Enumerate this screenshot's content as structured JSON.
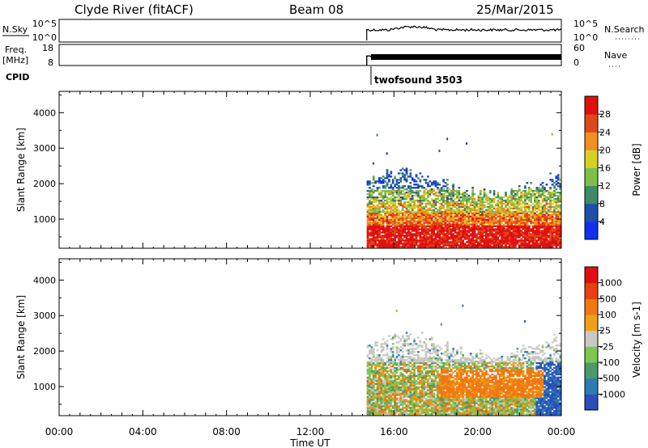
{
  "header": {
    "station": "Clyde River (fitACF)",
    "beam": "Beam 08",
    "date": "25/Mar/2015"
  },
  "aux": {
    "nsky_label": "N.Sky",
    "nsky_ticks": [
      "10^5",
      "10^0"
    ],
    "nsearch_label": "N.Search",
    "nsearch_ticks": [
      "10^5",
      "10^0"
    ],
    "freq_label": "Freq.",
    "freq_unit": "[MHz]",
    "freq_ticks": [
      "18",
      "8"
    ],
    "nave_label": "Nave",
    "nave_ticks": [
      "60",
      "0"
    ],
    "cpid_label": "CPID",
    "cpid_value": "twofsound 3503"
  },
  "colors": {
    "power_scale": [
      "#1030f0",
      "#1f4fa8",
      "#3e8a6a",
      "#7cbf4a",
      "#d8d028",
      "#f09020",
      "#e04818",
      "#e01010"
    ],
    "velocity_scale": [
      "#2850b8",
      "#2e7ab2",
      "#4c9a6a",
      "#7cc84a",
      "#c8c8c4",
      "#f0a018",
      "#f07814",
      "#e84010",
      "#e01010"
    ]
  },
  "chart_data": [
    {
      "type": "heatmap",
      "name": "power",
      "xlabel": "Time UT",
      "ylabel": "Slant Range [km]",
      "x_ticks": [
        "00:00",
        "04:00",
        "08:00",
        "12:00",
        "16:00",
        "20:00",
        "00:00"
      ],
      "x_range_hours": [
        0,
        24
      ],
      "y_ticks": [
        1000,
        2000,
        3000,
        4000
      ],
      "y_range_km": [
        180,
        4600
      ],
      "data_start_hour": 14.7,
      "colorbar": {
        "label": "Power [dB]",
        "ticks": [
          "28",
          "24",
          "20",
          "16",
          "12",
          "8",
          "4"
        ],
        "range": [
          0,
          32
        ]
      },
      "bands": [
        {
          "from_km": 180,
          "to_km": 800,
          "value": "29"
        },
        {
          "from_km": 800,
          "to_km": 1150,
          "value": "22"
        },
        {
          "from_km": 1150,
          "to_km": 1500,
          "value": "17"
        },
        {
          "from_km": 1500,
          "to_km": 1850,
          "value": "12"
        },
        {
          "from_km": 1850,
          "to_km": 2300,
          "value": "5"
        }
      ]
    },
    {
      "type": "heatmap",
      "name": "velocity",
      "xlabel": "Time UT",
      "ylabel": "Slant Range [km]",
      "x_ticks": [
        "00:00",
        "04:00",
        "08:00",
        "12:00",
        "16:00",
        "20:00",
        "00:00"
      ],
      "x_range_hours": [
        0,
        24
      ],
      "y_ticks": [
        1000,
        2000,
        3000,
        4000
      ],
      "y_range_km": [
        180,
        4600
      ],
      "data_start_hour": 14.7,
      "colorbar": {
        "label": "Velocity [m s-1]",
        "ticks": [
          "1000",
          "500",
          "100",
          "25",
          "-25",
          "-100",
          "-500",
          "-1000"
        ]
      }
    }
  ]
}
